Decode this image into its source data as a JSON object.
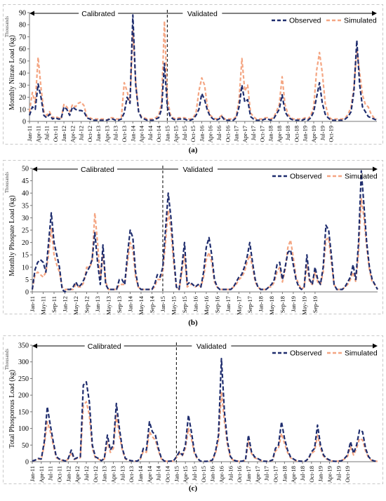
{
  "chart_data": [
    {
      "type": "line",
      "ylabel": "Monthly Nitrate Load (kg)",
      "yunit": "Thousands",
      "ylim": [
        0,
        90
      ],
      "yticks": [
        0,
        10,
        20,
        30,
        40,
        50,
        60,
        70,
        80,
        90
      ],
      "grid": false,
      "legend": "top-right",
      "caption": "(a)",
      "periods": {
        "calibrated": "Calibrated",
        "validated": "Validated",
        "split": "Jan-15"
      },
      "start": "Jan-11",
      "tick_labels": [
        "Jan-11",
        "Apr-11",
        "Jul-11",
        "Oct-11",
        "Jan-12",
        "Apr-12",
        "Jul-12",
        "Oct-12",
        "Jan-13",
        "Apr-13",
        "Jul-13",
        "Oct-13",
        "Jan-14",
        "Apr-14",
        "Jul-14",
        "Oct-14",
        "Jan-15",
        "Apr-15",
        "Jul-15",
        "Oct-15",
        "Jan-16",
        "Apr-16",
        "Jul-16",
        "Oct-16",
        "Jan-17",
        "Apr-17",
        "Jul-17",
        "Oct-17",
        "Jan-18",
        "Apr-18",
        "Jul-18",
        "Oct-18",
        "Jan-19",
        "Apr-19",
        "Jul-19",
        "Oct-19"
      ],
      "series": [
        {
          "name": "Observed",
          "color": "#1f2d6e",
          "values": [
            5,
            12,
            10,
            31,
            20,
            5,
            3,
            6,
            2,
            3,
            2,
            2,
            12,
            10,
            5,
            12,
            10,
            9,
            9,
            8,
            3,
            2,
            1,
            1,
            1,
            1,
            1,
            1,
            2,
            2,
            1,
            1,
            2,
            7,
            20,
            15,
            88,
            30,
            8,
            3,
            2,
            1,
            1,
            1,
            2,
            3,
            10,
            48,
            12,
            4,
            2,
            1,
            2,
            2,
            2,
            1,
            1,
            2,
            5,
            10,
            23,
            18,
            9,
            4,
            2,
            1,
            2,
            4,
            1,
            1,
            1,
            1,
            3,
            12,
            30,
            16,
            18,
            4,
            2,
            1,
            1,
            1,
            2,
            2,
            1,
            2,
            6,
            10,
            22,
            8,
            4,
            2,
            1,
            1,
            1,
            1,
            2,
            1,
            3,
            8,
            20,
            32,
            15,
            6,
            3,
            1,
            1,
            1,
            1,
            1,
            2,
            4,
            8,
            25,
            67,
            30,
            12,
            8,
            4,
            3,
            2,
            1
          ]
        },
        {
          "name": "Simulated",
          "color": "#f4a582",
          "values": [
            8,
            24,
            15,
            53,
            28,
            8,
            5,
            8,
            3,
            4,
            3,
            2,
            14,
            12,
            8,
            14,
            12,
            15,
            16,
            13,
            4,
            3,
            2,
            2,
            2,
            2,
            2,
            1,
            3,
            3,
            2,
            2,
            3,
            32,
            25,
            15,
            75,
            32,
            8,
            4,
            3,
            2,
            2,
            2,
            3,
            5,
            15,
            83,
            20,
            6,
            3,
            2,
            3,
            3,
            3,
            2,
            2,
            3,
            7,
            25,
            36,
            30,
            12,
            5,
            3,
            2,
            3,
            5,
            2,
            2,
            2,
            2,
            4,
            18,
            52,
            25,
            30,
            7,
            4,
            2,
            2,
            2,
            3,
            3,
            2,
            3,
            8,
            14,
            37,
            14,
            6,
            3,
            2,
            2,
            2,
            2,
            3,
            2,
            5,
            12,
            42,
            57,
            40,
            15,
            5,
            2,
            2,
            2,
            2,
            2,
            3,
            6,
            12,
            28,
            60,
            40,
            22,
            14,
            12,
            6,
            3,
            2
          ]
        }
      ]
    },
    {
      "type": "line",
      "ylabel": "Monthly Phospate Load (kg)",
      "yunit": "Thousands",
      "ylim": [
        0,
        50
      ],
      "yticks": [
        0,
        5,
        10,
        15,
        20,
        25,
        30,
        35,
        40,
        45,
        50
      ],
      "grid": false,
      "legend": "top-right",
      "caption": "(b)",
      "periods": {
        "calibrated": "Calibrated",
        "validated": "Validated",
        "split": "Jan-15"
      },
      "start": "Jan-11",
      "tick_labels": [
        "Jan-11",
        "May-11",
        "Sep-11",
        "Jan-12",
        "May-12",
        "Sep-12",
        "Jan-13",
        "May-13",
        "Sep-13",
        "Jan-14",
        "May-14",
        "Sep-14",
        "Jan-15",
        "May-15",
        "Sep-15",
        "Jan-16",
        "May-16",
        "Sep-16",
        "Jan-17",
        "May-17",
        "Sep-17",
        "Jan-18",
        "May-18",
        "Sep-18",
        "Jan-19",
        "May-19",
        "Sep-19"
      ],
      "series": [
        {
          "name": "Observed",
          "color": "#1f2d6e",
          "values": [
            1,
            9,
            12,
            13,
            12,
            8,
            20,
            32,
            20,
            15,
            10,
            1,
            0,
            1,
            1,
            2,
            4,
            2,
            3,
            5,
            8,
            10,
            13,
            24,
            12,
            3,
            19,
            3,
            1,
            1,
            1,
            1,
            5,
            5,
            3,
            15,
            25,
            22,
            8,
            2,
            1,
            1,
            1,
            1,
            1,
            3,
            7,
            6,
            10,
            25,
            40,
            30,
            15,
            2,
            1,
            10,
            20,
            3,
            4,
            3,
            2,
            3,
            2,
            8,
            18,
            22,
            15,
            5,
            2,
            1,
            1,
            1,
            1,
            1,
            2,
            4,
            6,
            7,
            10,
            14,
            20,
            12,
            5,
            2,
            1,
            1,
            1,
            2,
            3,
            5,
            11,
            12,
            5,
            10,
            16,
            17,
            11,
            5,
            2,
            1,
            2,
            15,
            5,
            3,
            10,
            5,
            3,
            10,
            27,
            25,
            15,
            3,
            1,
            1,
            1,
            2,
            4,
            6,
            11,
            5,
            20,
            49,
            35,
            20,
            10,
            5,
            3,
            1
          ]
        },
        {
          "name": "Simulated",
          "color": "#f4a582",
          "values": [
            1,
            7,
            8,
            7,
            6,
            8,
            15,
            26,
            15,
            11,
            8,
            2,
            1,
            1,
            1,
            1,
            3,
            2,
            2,
            4,
            10,
            10,
            12,
            32,
            20,
            5,
            15,
            4,
            1,
            1,
            1,
            1,
            3,
            3,
            3,
            12,
            20,
            17,
            6,
            2,
            1,
            1,
            1,
            1,
            1,
            2,
            5,
            5,
            8,
            20,
            33,
            25,
            12,
            2,
            1,
            8,
            15,
            2,
            3,
            3,
            2,
            3,
            2,
            6,
            13,
            16,
            12,
            4,
            2,
            1,
            1,
            1,
            1,
            1,
            2,
            3,
            5,
            6,
            8,
            12,
            15,
            10,
            4,
            2,
            1,
            1,
            1,
            2,
            2,
            4,
            8,
            10,
            4,
            9,
            18,
            21,
            14,
            6,
            3,
            1,
            2,
            11,
            4,
            3,
            8,
            4,
            3,
            8,
            21,
            22,
            12,
            3,
            1,
            1,
            1,
            2,
            3,
            5,
            8,
            4,
            16,
            38,
            30,
            18,
            9,
            4,
            3,
            1
          ]
        }
      ]
    },
    {
      "type": "line",
      "ylabel": "Total Phosporous Load (kg)",
      "yunit": "Thousands",
      "ylim": [
        0,
        350
      ],
      "yticks": [
        0,
        50,
        100,
        150,
        200,
        250,
        300,
        350
      ],
      "grid": false,
      "legend": "top-right",
      "caption": "(c)",
      "periods": {
        "calibrated": "Calibrated",
        "validated": "Validated",
        "split": "Jan-15"
      },
      "start": "Jan-11",
      "tick_labels": [
        "Jan-11",
        "Apr-11",
        "Jul-11",
        "Oct-11",
        "Jan-12",
        "Apr-12",
        "Jul-12",
        "Oct-12",
        "Jan-13",
        "Apr-13",
        "Jul-13",
        "Oct-13",
        "Jan-14",
        "Apr-14",
        "Jul-14",
        "Oct-14",
        "Jan-15",
        "Apr-15",
        "Jul-15",
        "Oct-15",
        "Jan-16",
        "Apr-16",
        "Jul-16",
        "Oct-16",
        "Jan-17",
        "Apr-17",
        "Jul-17",
        "Oct-17",
        "Jan-18",
        "Apr-18",
        "Jul-18",
        "Oct-18",
        "Jan-19",
        "Apr-19",
        "Jul-19",
        "Oct-19"
      ],
      "series": [
        {
          "name": "Observed",
          "color": "#1f2d6e",
          "values": [
            2,
            5,
            10,
            8,
            60,
            165,
            110,
            60,
            15,
            8,
            5,
            2,
            10,
            35,
            8,
            12,
            15,
            230,
            240,
            180,
            50,
            15,
            10,
            3,
            10,
            80,
            35,
            50,
            175,
            100,
            40,
            10,
            5,
            3,
            2,
            2,
            10,
            40,
            35,
            120,
            90,
            80,
            40,
            10,
            2,
            1,
            2,
            2,
            15,
            30,
            20,
            50,
            140,
            90,
            30,
            10,
            2,
            1,
            1,
            2,
            5,
            30,
            80,
            310,
            150,
            60,
            15,
            5,
            2,
            1,
            2,
            5,
            80,
            30,
            15,
            10,
            5,
            2,
            1,
            2,
            5,
            40,
            50,
            120,
            70,
            35,
            15,
            8,
            3,
            2,
            1,
            2,
            10,
            30,
            40,
            110,
            50,
            20,
            10,
            5,
            2,
            1,
            2,
            3,
            10,
            20,
            60,
            25,
            50,
            95,
            90,
            40,
            15,
            5,
            2,
            1
          ]
        },
        {
          "name": "Simulated",
          "color": "#f4a582",
          "values": [
            2,
            4,
            8,
            7,
            50,
            120,
            90,
            50,
            12,
            7,
            4,
            2,
            8,
            28,
            7,
            10,
            12,
            170,
            180,
            140,
            40,
            12,
            8,
            3,
            8,
            60,
            28,
            40,
            140,
            80,
            35,
            8,
            4,
            3,
            2,
            2,
            8,
            32,
            28,
            90,
            75,
            65,
            33,
            8,
            2,
            1,
            2,
            2,
            12,
            25,
            18,
            40,
            100,
            70,
            25,
            8,
            2,
            1,
            1,
            2,
            4,
            25,
            65,
            210,
            120,
            50,
            12,
            4,
            2,
            1,
            2,
            4,
            60,
            25,
            12,
            8,
            4,
            2,
            1,
            2,
            4,
            32,
            40,
            85,
            55,
            28,
            12,
            6,
            3,
            2,
            1,
            2,
            8,
            25,
            32,
            80,
            40,
            16,
            8,
            4,
            2,
            1,
            2,
            3,
            8,
            16,
            45,
            20,
            40,
            70,
            65,
            32,
            12,
            4,
            2,
            1
          ]
        }
      ]
    }
  ]
}
